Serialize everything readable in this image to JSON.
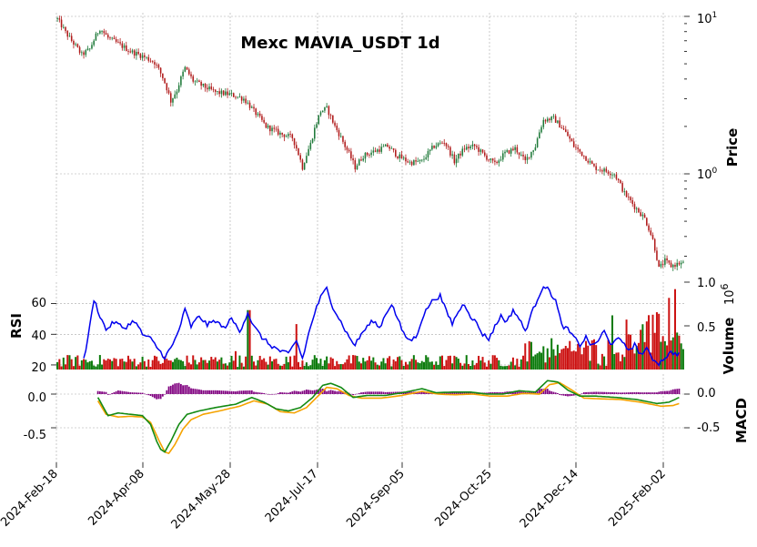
{
  "chart_data": {
    "title": "Mexc MAVIA_USDT 1d",
    "type": "candlestick",
    "scale": "log",
    "start_date": "2024-02-18",
    "x_tick_labels": [
      "2024-Feb-18",
      "2024-Apr-08",
      "2024-May-28",
      "2024-Jul-17",
      "2024-Sep-05",
      "2024-Oct-25",
      "2024-Dec-14",
      "2025-Feb-02"
    ],
    "price_panel": {
      "ylabel": "Price",
      "tick_labels": [
        {
          "value": 10,
          "base": "10",
          "exp": "1"
        },
        {
          "value": 1,
          "base": "10",
          "exp": "0"
        }
      ],
      "close_anchors": [
        {
          "day": 0,
          "close": 9.6
        },
        {
          "day": 4,
          "close": 7.9
        },
        {
          "day": 7,
          "close": 7.0
        },
        {
          "day": 12,
          "close": 5.7
        },
        {
          "day": 16,
          "close": 6.2
        },
        {
          "day": 21,
          "close": 8.4
        },
        {
          "day": 25,
          "close": 7.3
        },
        {
          "day": 30,
          "close": 6.7
        },
        {
          "day": 36,
          "close": 6.0
        },
        {
          "day": 42,
          "close": 5.6
        },
        {
          "day": 48,
          "close": 5.1
        },
        {
          "day": 52,
          "close": 4.1
        },
        {
          "day": 56,
          "close": 2.9
        },
        {
          "day": 59,
          "close": 3.4
        },
        {
          "day": 63,
          "close": 4.7
        },
        {
          "day": 67,
          "close": 3.9
        },
        {
          "day": 72,
          "close": 3.6
        },
        {
          "day": 78,
          "close": 3.3
        },
        {
          "day": 85,
          "close": 3.2
        },
        {
          "day": 92,
          "close": 3.0
        },
        {
          "day": 97,
          "close": 2.5
        },
        {
          "day": 103,
          "close": 2.0
        },
        {
          "day": 110,
          "close": 1.8
        },
        {
          "day": 116,
          "close": 1.7
        },
        {
          "day": 121,
          "close": 1.1
        },
        {
          "day": 125,
          "close": 1.55
        },
        {
          "day": 130,
          "close": 2.5
        },
        {
          "day": 133,
          "close": 2.6
        },
        {
          "day": 137,
          "close": 2.0
        },
        {
          "day": 142,
          "close": 1.5
        },
        {
          "day": 147,
          "close": 1.1
        },
        {
          "day": 151,
          "close": 1.3
        },
        {
          "day": 157,
          "close": 1.4
        },
        {
          "day": 163,
          "close": 1.5
        },
        {
          "day": 168,
          "close": 1.3
        },
        {
          "day": 174,
          "close": 1.18
        },
        {
          "day": 180,
          "close": 1.2
        },
        {
          "day": 186,
          "close": 1.5
        },
        {
          "day": 191,
          "close": 1.6
        },
        {
          "day": 196,
          "close": 1.2
        },
        {
          "day": 201,
          "close": 1.45
        },
        {
          "day": 206,
          "close": 1.5
        },
        {
          "day": 211,
          "close": 1.3
        },
        {
          "day": 216,
          "close": 1.15
        },
        {
          "day": 221,
          "close": 1.35
        },
        {
          "day": 226,
          "close": 1.45
        },
        {
          "day": 231,
          "close": 1.2
        },
        {
          "day": 236,
          "close": 1.5
        },
        {
          "day": 240,
          "close": 2.2
        },
        {
          "day": 245,
          "close": 2.25
        },
        {
          "day": 250,
          "close": 1.9
        },
        {
          "day": 255,
          "close": 1.5
        },
        {
          "day": 260,
          "close": 1.3
        },
        {
          "day": 265,
          "close": 1.1
        },
        {
          "day": 270,
          "close": 1.05
        },
        {
          "day": 275,
          "close": 1.0
        },
        {
          "day": 280,
          "close": 0.75
        },
        {
          "day": 285,
          "close": 0.62
        },
        {
          "day": 290,
          "close": 0.52
        },
        {
          "day": 294,
          "close": 0.38
        },
        {
          "day": 297,
          "close": 0.25
        },
        {
          "day": 300,
          "close": 0.28
        },
        {
          "day": 303,
          "close": 0.26
        },
        {
          "day": 307,
          "close": 0.27
        }
      ]
    },
    "volume_panel": {
      "ylabel": "Volume",
      "multiplier_base": "10",
      "multiplier_exp": "6",
      "tick_labels": [
        "1.0",
        "0.5"
      ],
      "ylim": [
        0,
        1.0
      ]
    },
    "rsi_panel": {
      "ylabel": "RSI",
      "tick_labels": [
        "60",
        "40",
        "20"
      ],
      "ylim": [
        17,
        74
      ],
      "anchors": [
        {
          "day": 13,
          "value": 23
        },
        {
          "day": 16,
          "value": 45
        },
        {
          "day": 18,
          "value": 63
        },
        {
          "day": 21,
          "value": 52
        },
        {
          "day": 24,
          "value": 43
        },
        {
          "day": 28,
          "value": 48
        },
        {
          "day": 33,
          "value": 44
        },
        {
          "day": 38,
          "value": 49
        },
        {
          "day": 42,
          "value": 40
        },
        {
          "day": 46,
          "value": 37
        },
        {
          "day": 50,
          "value": 30
        },
        {
          "day": 53,
          "value": 25
        },
        {
          "day": 57,
          "value": 33
        },
        {
          "day": 60,
          "value": 43
        },
        {
          "day": 63,
          "value": 56
        },
        {
          "day": 66,
          "value": 45
        },
        {
          "day": 70,
          "value": 52
        },
        {
          "day": 74,
          "value": 46
        },
        {
          "day": 78,
          "value": 49
        },
        {
          "day": 82,
          "value": 44
        },
        {
          "day": 86,
          "value": 50
        },
        {
          "day": 90,
          "value": 42
        },
        {
          "day": 94,
          "value": 54
        },
        {
          "day": 97,
          "value": 45
        },
        {
          "day": 101,
          "value": 38
        },
        {
          "day": 105,
          "value": 33
        },
        {
          "day": 110,
          "value": 29
        },
        {
          "day": 114,
          "value": 27
        },
        {
          "day": 118,
          "value": 36
        },
        {
          "day": 121,
          "value": 24
        },
        {
          "day": 124,
          "value": 40
        },
        {
          "day": 127,
          "value": 54
        },
        {
          "day": 130,
          "value": 64
        },
        {
          "day": 133,
          "value": 70
        },
        {
          "day": 136,
          "value": 58
        },
        {
          "day": 140,
          "value": 48
        },
        {
          "day": 144,
          "value": 38
        },
        {
          "day": 147,
          "value": 33
        },
        {
          "day": 150,
          "value": 40
        },
        {
          "day": 153,
          "value": 45
        },
        {
          "day": 156,
          "value": 49
        },
        {
          "day": 159,
          "value": 44
        },
        {
          "day": 162,
          "value": 53
        },
        {
          "day": 165,
          "value": 60
        },
        {
          "day": 168,
          "value": 50
        },
        {
          "day": 171,
          "value": 40
        },
        {
          "day": 174,
          "value": 36
        },
        {
          "day": 177,
          "value": 38
        },
        {
          "day": 180,
          "value": 50
        },
        {
          "day": 183,
          "value": 58
        },
        {
          "day": 186,
          "value": 63
        },
        {
          "day": 189,
          "value": 65
        },
        {
          "day": 192,
          "value": 55
        },
        {
          "day": 195,
          "value": 47
        },
        {
          "day": 198,
          "value": 55
        },
        {
          "day": 201,
          "value": 60
        },
        {
          "day": 204,
          "value": 52
        },
        {
          "day": 207,
          "value": 47
        },
        {
          "day": 210,
          "value": 40
        },
        {
          "day": 213,
          "value": 37
        },
        {
          "day": 216,
          "value": 45
        },
        {
          "day": 219,
          "value": 52
        },
        {
          "day": 222,
          "value": 48
        },
        {
          "day": 225,
          "value": 56
        },
        {
          "day": 228,
          "value": 50
        },
        {
          "day": 231,
          "value": 42
        },
        {
          "day": 234,
          "value": 53
        },
        {
          "day": 237,
          "value": 63
        },
        {
          "day": 240,
          "value": 72
        },
        {
          "day": 243,
          "value": 68
        },
        {
          "day": 246,
          "value": 62
        },
        {
          "day": 249,
          "value": 46
        },
        {
          "day": 252,
          "value": 43
        },
        {
          "day": 255,
          "value": 38
        },
        {
          "day": 258,
          "value": 33
        },
        {
          "day": 261,
          "value": 38
        },
        {
          "day": 264,
          "value": 32
        },
        {
          "day": 267,
          "value": 36
        },
        {
          "day": 270,
          "value": 42
        },
        {
          "day": 273,
          "value": 33
        },
        {
          "day": 276,
          "value": 38
        },
        {
          "day": 279,
          "value": 34
        },
        {
          "day": 282,
          "value": 30
        },
        {
          "day": 285,
          "value": 33
        },
        {
          "day": 288,
          "value": 27
        },
        {
          "day": 291,
          "value": 30
        },
        {
          "day": 294,
          "value": 24
        },
        {
          "day": 297,
          "value": 21
        },
        {
          "day": 300,
          "value": 25
        },
        {
          "day": 303,
          "value": 28
        },
        {
          "day": 307,
          "value": 27
        }
      ]
    },
    "macd_panel": {
      "ylabel": "MACD",
      "left_tick_labels": [
        "0.0",
        "-0.5"
      ],
      "right_tick_labels": [
        "0.0",
        "-0.5"
      ],
      "ylim": [
        -0.88,
        0.24
      ],
      "macd_anchors": [
        {
          "day": 20,
          "value": -0.05
        },
        {
          "day": 25,
          "value": -0.32
        },
        {
          "day": 30,
          "value": -0.28
        },
        {
          "day": 36,
          "value": -0.3
        },
        {
          "day": 42,
          "value": -0.32
        },
        {
          "day": 46,
          "value": -0.45
        },
        {
          "day": 49,
          "value": -0.7
        },
        {
          "day": 51,
          "value": -0.82
        },
        {
          "day": 53,
          "value": -0.86
        },
        {
          "day": 56,
          "value": -0.7
        },
        {
          "day": 60,
          "value": -0.45
        },
        {
          "day": 64,
          "value": -0.3
        },
        {
          "day": 70,
          "value": -0.25
        },
        {
          "day": 78,
          "value": -0.2
        },
        {
          "day": 88,
          "value": -0.15
        },
        {
          "day": 96,
          "value": -0.05
        },
        {
          "day": 102,
          "value": -0.12
        },
        {
          "day": 108,
          "value": -0.22
        },
        {
          "day": 114,
          "value": -0.25
        },
        {
          "day": 120,
          "value": -0.2
        },
        {
          "day": 126,
          "value": -0.05
        },
        {
          "day": 131,
          "value": 0.13
        },
        {
          "day": 135,
          "value": 0.16
        },
        {
          "day": 140,
          "value": 0.1
        },
        {
          "day": 146,
          "value": -0.05
        },
        {
          "day": 153,
          "value": -0.02
        },
        {
          "day": 162,
          "value": -0.02
        },
        {
          "day": 172,
          "value": 0.03
        },
        {
          "day": 180,
          "value": 0.08
        },
        {
          "day": 187,
          "value": 0.02
        },
        {
          "day": 195,
          "value": 0.03
        },
        {
          "day": 204,
          "value": 0.03
        },
        {
          "day": 212,
          "value": 0.0
        },
        {
          "day": 220,
          "value": 0.0
        },
        {
          "day": 228,
          "value": 0.05
        },
        {
          "day": 236,
          "value": 0.03
        },
        {
          "day": 242,
          "value": 0.2
        },
        {
          "day": 247,
          "value": 0.18
        },
        {
          "day": 252,
          "value": 0.06
        },
        {
          "day": 258,
          "value": -0.03
        },
        {
          "day": 266,
          "value": -0.03
        },
        {
          "day": 276,
          "value": -0.05
        },
        {
          "day": 286,
          "value": -0.08
        },
        {
          "day": 296,
          "value": -0.14
        },
        {
          "day": 302,
          "value": -0.12
        },
        {
          "day": 307,
          "value": -0.05
        }
      ],
      "signal_anchors": [
        {
          "day": 20,
          "value": -0.1
        },
        {
          "day": 24,
          "value": -0.3
        },
        {
          "day": 30,
          "value": -0.34
        },
        {
          "day": 36,
          "value": -0.33
        },
        {
          "day": 42,
          "value": -0.34
        },
        {
          "day": 46,
          "value": -0.42
        },
        {
          "day": 50,
          "value": -0.68
        },
        {
          "day": 53,
          "value": -0.86
        },
        {
          "day": 55,
          "value": -0.88
        },
        {
          "day": 58,
          "value": -0.75
        },
        {
          "day": 62,
          "value": -0.52
        },
        {
          "day": 66,
          "value": -0.38
        },
        {
          "day": 72,
          "value": -0.3
        },
        {
          "day": 80,
          "value": -0.25
        },
        {
          "day": 90,
          "value": -0.18
        },
        {
          "day": 97,
          "value": -0.1
        },
        {
          "day": 104,
          "value": -0.15
        },
        {
          "day": 110,
          "value": -0.26
        },
        {
          "day": 117,
          "value": -0.28
        },
        {
          "day": 123,
          "value": -0.2
        },
        {
          "day": 128,
          "value": -0.05
        },
        {
          "day": 133,
          "value": 0.1
        },
        {
          "day": 138,
          "value": 0.08
        },
        {
          "day": 144,
          "value": -0.02
        },
        {
          "day": 150,
          "value": -0.06
        },
        {
          "day": 160,
          "value": -0.06
        },
        {
          "day": 170,
          "value": -0.02
        },
        {
          "day": 180,
          "value": 0.04
        },
        {
          "day": 188,
          "value": 0.0
        },
        {
          "day": 196,
          "value": -0.01
        },
        {
          "day": 205,
          "value": 0.0
        },
        {
          "day": 214,
          "value": -0.03
        },
        {
          "day": 222,
          "value": -0.03
        },
        {
          "day": 230,
          "value": 0.01
        },
        {
          "day": 238,
          "value": 0.0
        },
        {
          "day": 243,
          "value": 0.14
        },
        {
          "day": 248,
          "value": 0.17
        },
        {
          "day": 254,
          "value": 0.06
        },
        {
          "day": 260,
          "value": -0.06
        },
        {
          "day": 268,
          "value": -0.07
        },
        {
          "day": 278,
          "value": -0.08
        },
        {
          "day": 288,
          "value": -0.12
        },
        {
          "day": 298,
          "value": -0.18
        },
        {
          "day": 304,
          "value": -0.17
        },
        {
          "day": 307,
          "value": -0.14
        }
      ]
    },
    "colors": {
      "up": "#1f7a3a",
      "down": "#b01b1b",
      "vol_up": "#0a7a0a",
      "vol_down": "#cc1111",
      "rsi": "#0000ee",
      "macd": "#138a13",
      "signal": "#f5a300",
      "hist": "#800080"
    }
  }
}
